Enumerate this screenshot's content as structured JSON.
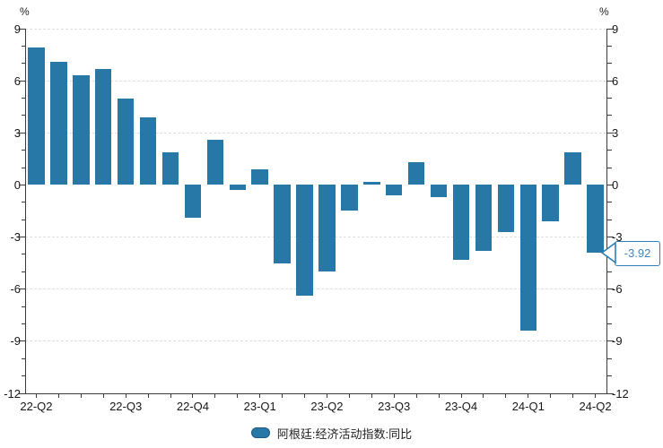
{
  "chart_data": {
    "type": "bar",
    "title": "",
    "unit_left": "%",
    "unit_right": "%",
    "series": [
      {
        "name": "阿根廷:经济活动指数:同比",
        "color": "#2777a7",
        "values": [
          7.9,
          7.1,
          6.3,
          6.7,
          5.0,
          3.9,
          1.9,
          -1.9,
          2.6,
          -0.3,
          0.9,
          -4.5,
          -6.4,
          -5.0,
          -1.5,
          0.2,
          -0.6,
          1.3,
          -0.7,
          -4.3,
          -3.8,
          -2.7,
          -8.4,
          -2.1,
          1.9,
          -3.92
        ]
      }
    ],
    "x_labels": [
      {
        "index": 0,
        "label": "22-Q2"
      },
      {
        "index": 4,
        "label": "22-Q3"
      },
      {
        "index": 7,
        "label": "22-Q4"
      },
      {
        "index": 10,
        "label": "23-Q1"
      },
      {
        "index": 13,
        "label": "23-Q2"
      },
      {
        "index": 16,
        "label": "23-Q3"
      },
      {
        "index": 19,
        "label": "23-Q4"
      },
      {
        "index": 22,
        "label": "24-Q1"
      },
      {
        "index": 25,
        "label": "24-Q2"
      }
    ],
    "ylim": [
      -12,
      9
    ],
    "y_ticks": [
      {
        "value": 9,
        "label": "9"
      },
      {
        "value": 6,
        "label": "6"
      },
      {
        "value": 3,
        "label": "3"
      },
      {
        "value": 0,
        "label": "0"
      },
      {
        "value": -3,
        "label": "-3"
      },
      {
        "value": -6,
        "label": "-6"
      },
      {
        "value": -9,
        "label": "-9"
      },
      {
        "value": -12,
        "label": "-12"
      }
    ],
    "y_minor_step": 1,
    "gridline_values": [
      9,
      6,
      3,
      -3,
      -6,
      -9
    ],
    "grid_style": "dashed",
    "legend": {
      "position": "bottom-center",
      "label": "阿根廷:经济活动指数:同比",
      "swatch_color": "#2777a7"
    },
    "annotation": {
      "text": "-3.92",
      "value": -3.92,
      "bar_index": 25,
      "color": "#2e7fb7"
    }
  }
}
